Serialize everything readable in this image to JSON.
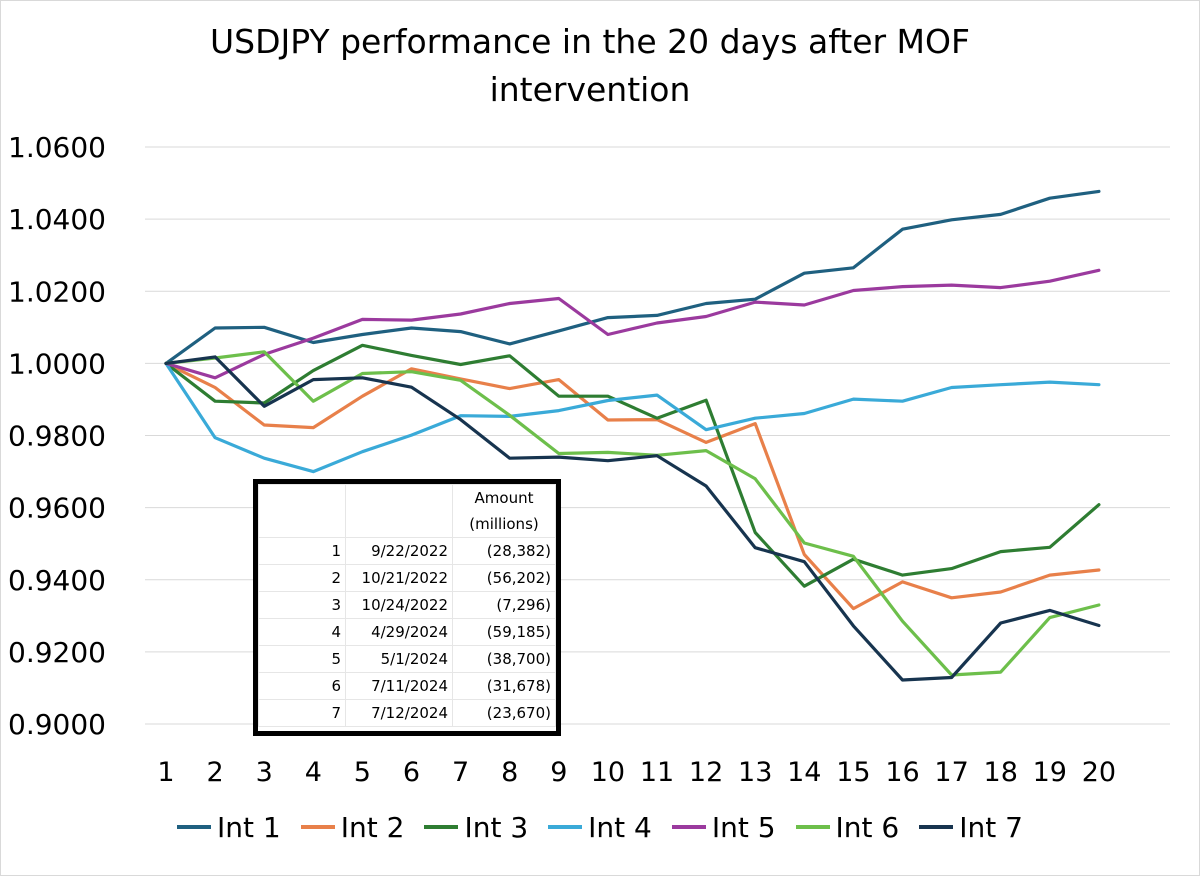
{
  "chart_data": {
    "type": "line",
    "title": "USDJPY performance in the 20 days after MOF intervention",
    "xlabel": "",
    "ylabel": "",
    "x": [
      1,
      2,
      3,
      4,
      5,
      6,
      7,
      8,
      9,
      10,
      11,
      12,
      13,
      14,
      15,
      16,
      17,
      18,
      19,
      20
    ],
    "ylim": [
      0.9,
      1.06
    ],
    "yticks": [
      "0.9000",
      "0.9200",
      "0.9400",
      "0.9600",
      "0.9800",
      "1.0000",
      "1.0200",
      "1.0400",
      "1.0600"
    ],
    "grid": true,
    "legend": "bottom",
    "series": [
      {
        "name": "Int 1",
        "color": "#1f6080",
        "values": [
          1.0,
          1.0098,
          1.01,
          1.0058,
          1.008,
          1.0098,
          1.0088,
          1.0054,
          1.009,
          1.0127,
          1.0133,
          1.0166,
          1.0178,
          1.025,
          1.0265,
          1.0372,
          1.0398,
          1.0413,
          1.0458,
          1.0477
        ]
      },
      {
        "name": "Int 2",
        "color": "#e8804a",
        "values": [
          1.0,
          0.9933,
          0.9829,
          0.9822,
          0.9909,
          0.9985,
          0.9957,
          0.993,
          0.9955,
          0.9843,
          0.9844,
          0.9781,
          0.9833,
          0.947,
          0.932,
          0.9394,
          0.935,
          0.9366,
          0.9413,
          0.9427
        ]
      },
      {
        "name": "Int 3",
        "color": "#2e7d32",
        "values": [
          1.0,
          0.9895,
          0.989,
          0.998,
          1.005,
          1.0022,
          0.9997,
          1.0021,
          0.9909,
          0.9909,
          0.9848,
          0.9898,
          0.9531,
          0.9382,
          0.9457,
          0.9413,
          0.9431,
          0.9478,
          0.949,
          0.9608
        ]
      },
      {
        "name": "Int 4",
        "color": "#3aaad8",
        "values": [
          1.0,
          0.9794,
          0.9737,
          0.97,
          0.9755,
          0.9801,
          0.9855,
          0.9853,
          0.9869,
          0.9897,
          0.9912,
          0.9816,
          0.9848,
          0.9861,
          0.9901,
          0.9895,
          0.9933,
          0.9941,
          0.9948,
          0.9941
        ]
      },
      {
        "name": "Int 5",
        "color": "#9b3a9e",
        "values": [
          1.0,
          0.996,
          1.0025,
          1.007,
          1.0122,
          1.012,
          1.0137,
          1.0166,
          1.018,
          1.008,
          1.0112,
          1.013,
          1.017,
          1.0162,
          1.0202,
          1.0213,
          1.0217,
          1.021,
          1.0228,
          1.0258
        ]
      },
      {
        "name": "Int 6",
        "color": "#6dbf4b",
        "values": [
          1.0,
          1.0015,
          1.0032,
          0.9895,
          0.9972,
          0.9977,
          0.9953,
          0.9856,
          0.975,
          0.9753,
          0.9745,
          0.9758,
          0.968,
          0.9502,
          0.9465,
          0.9285,
          0.9136,
          0.9144,
          0.9295,
          0.933
        ]
      },
      {
        "name": "Int 7",
        "color": "#17344f",
        "values": [
          1.0,
          1.0018,
          0.9881,
          0.9955,
          0.996,
          0.9934,
          0.9844,
          0.9737,
          0.974,
          0.973,
          0.9744,
          0.966,
          0.9489,
          0.945,
          0.9272,
          0.9122,
          0.9129,
          0.928,
          0.9315,
          0.9273
        ]
      }
    ]
  },
  "inset_table": {
    "header": [
      "",
      "",
      "Amount (millions)"
    ],
    "rows": [
      [
        "1",
        "9/22/2022",
        "(28,382)"
      ],
      [
        "2",
        "10/21/2022",
        "(56,202)"
      ],
      [
        "3",
        "10/24/2022",
        "(7,296)"
      ],
      [
        "4",
        "4/29/2024",
        "(59,185)"
      ],
      [
        "5",
        "5/1/2024",
        "(38,700)"
      ],
      [
        "6",
        "7/11/2024",
        "(31,678)"
      ],
      [
        "7",
        "7/12/2024",
        "(23,670)"
      ]
    ]
  }
}
